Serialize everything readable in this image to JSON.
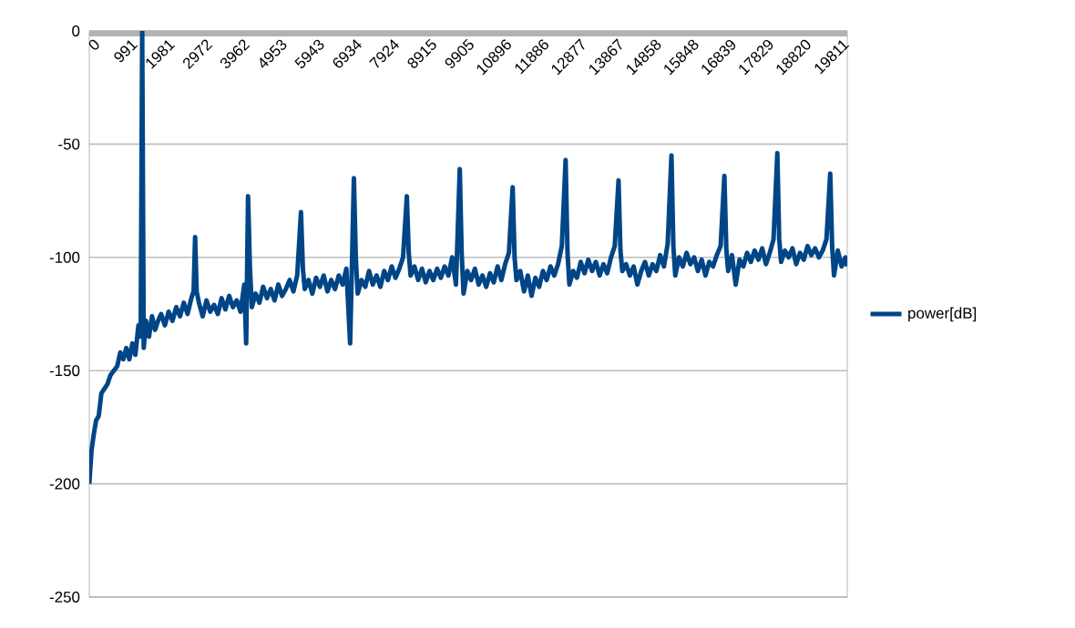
{
  "chart_data": {
    "type": "line",
    "x": [
      0,
      60,
      120,
      180,
      250,
      320,
      400,
      480,
      560,
      650,
      740,
      820,
      900,
      980,
      1060,
      1140,
      1220,
      1300,
      1360,
      1400,
      1440,
      1500,
      1580,
      1660,
      1740,
      1820,
      1900,
      2000,
      2100,
      2200,
      2300,
      2400,
      2500,
      2600,
      2700,
      2760,
      2800,
      2840,
      2900,
      3000,
      3100,
      3200,
      3300,
      3400,
      3500,
      3600,
      3700,
      3800,
      3900,
      4000,
      4100,
      4150,
      4200,
      4250,
      4300,
      4400,
      4500,
      4600,
      4700,
      4800,
      4900,
      5000,
      5100,
      5200,
      5300,
      5400,
      5500,
      5600,
      5650,
      5700,
      5800,
      5900,
      6000,
      6100,
      6200,
      6300,
      6400,
      6500,
      6600,
      6700,
      6800,
      6900,
      7000,
      7050,
      7100,
      7200,
      7300,
      7400,
      7500,
      7600,
      7700,
      7800,
      7900,
      8000,
      8100,
      8200,
      8300,
      8400,
      8450,
      8500,
      8600,
      8700,
      8800,
      8900,
      9000,
      9100,
      9200,
      9300,
      9400,
      9500,
      9600,
      9700,
      9800,
      9850,
      9900,
      10000,
      10100,
      10200,
      10300,
      10400,
      10500,
      10600,
      10700,
      10800,
      10900,
      11000,
      11100,
      11200,
      11250,
      11300,
      11400,
      11500,
      11600,
      11700,
      11800,
      11900,
      12000,
      12100,
      12200,
      12300,
      12400,
      12500,
      12600,
      12650,
      12700,
      12800,
      12900,
      13000,
      13100,
      13200,
      13300,
      13400,
      13500,
      13600,
      13700,
      13800,
      13900,
      14000,
      14050,
      14100,
      14200,
      14300,
      14400,
      14500,
      14600,
      14700,
      14800,
      14900,
      15000,
      15100,
      15200,
      15300,
      15400,
      15450,
      15500,
      15600,
      15700,
      15800,
      15900,
      16000,
      16100,
      16200,
      16300,
      16400,
      16500,
      16600,
      16700,
      16800,
      16850,
      16900,
      17000,
      17100,
      17200,
      17300,
      17400,
      17500,
      17600,
      17700,
      17800,
      17900,
      18000,
      18100,
      18200,
      18250,
      18300,
      18400,
      18500,
      18600,
      18700,
      18800,
      18900,
      19000,
      19100,
      19200,
      19300,
      19400,
      19500,
      19600,
      19650,
      19700,
      19800,
      19900,
      20000,
      20050
    ],
    "series": [
      {
        "name": "power[dB]",
        "color": "#004586",
        "values": [
          -200,
          -185,
          -178,
          -172,
          -170,
          -160,
          -158,
          -156,
          -152,
          -150,
          -148,
          -142,
          -145,
          -140,
          -145,
          -138,
          -143,
          -130,
          -135,
          0,
          -140,
          -128,
          -135,
          -126,
          -132,
          -128,
          -125,
          -130,
          -124,
          -128,
          -122,
          -126,
          -120,
          -125,
          -118,
          -115,
          -91,
          -115,
          -120,
          -126,
          -119,
          -124,
          -121,
          -125,
          -118,
          -123,
          -117,
          -122,
          -119,
          -124,
          -112,
          -138,
          -73,
          -105,
          -122,
          -116,
          -120,
          -113,
          -118,
          -114,
          -119,
          -112,
          -117,
          -114,
          -110,
          -115,
          -108,
          -80,
          -105,
          -114,
          -110,
          -116,
          -109,
          -113,
          -108,
          -115,
          -110,
          -114,
          -108,
          -112,
          -105,
          -138,
          -65,
          -100,
          -116,
          -110,
          -113,
          -106,
          -112,
          -108,
          -113,
          -106,
          -110,
          -104,
          -109,
          -105,
          -100,
          -73,
          -98,
          -108,
          -104,
          -110,
          -105,
          -111,
          -106,
          -110,
          -105,
          -109,
          -104,
          -108,
          -100,
          -112,
          -61,
          -98,
          -116,
          -106,
          -110,
          -105,
          -112,
          -108,
          -113,
          -107,
          -111,
          -104,
          -110,
          -103,
          -98,
          -69,
          -100,
          -110,
          -106,
          -115,
          -108,
          -117,
          -109,
          -113,
          -106,
          -110,
          -104,
          -108,
          -103,
          -95,
          -57,
          -98,
          -112,
          -106,
          -109,
          -102,
          -107,
          -101,
          -106,
          -102,
          -108,
          -103,
          -107,
          -100,
          -95,
          -66,
          -97,
          -106,
          -103,
          -108,
          -104,
          -112,
          -106,
          -102,
          -108,
          -103,
          -106,
          -99,
          -104,
          -94,
          -55,
          -95,
          -108,
          -100,
          -104,
          -98,
          -103,
          -100,
          -106,
          -101,
          -108,
          -102,
          -104,
          -99,
          -95,
          -64,
          -96,
          -106,
          -99,
          -112,
          -101,
          -104,
          -98,
          -102,
          -97,
          -101,
          -96,
          -103,
          -98,
          -92,
          -54,
          -92,
          -102,
          -97,
          -100,
          -96,
          -103,
          -98,
          -101,
          -95,
          -99,
          -96,
          -100,
          -97,
          -92,
          -63,
          -95,
          -108,
          -97,
          -104,
          -100,
          -104
        ]
      }
    ],
    "xlim": [
      0,
      20050
    ],
    "xticks": [
      0,
      991,
      1981,
      2972,
      3962,
      4953,
      5943,
      6934,
      7924,
      8915,
      9905,
      10896,
      11886,
      12877,
      13867,
      14858,
      15848,
      16839,
      17829,
      18820,
      19811
    ],
    "ylim": [
      -250,
      0
    ],
    "yticks": [
      0,
      -50,
      -100,
      -150,
      -200,
      -250
    ],
    "grid": "y",
    "legend": "right"
  }
}
